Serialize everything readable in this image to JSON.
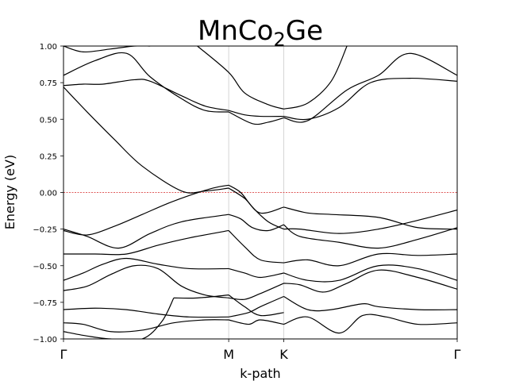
{
  "chart_data": {
    "type": "line",
    "title": "MnCo",
    "title_subscript": "2",
    "title_suffix": "Ge",
    "xlabel": "k-path",
    "ylabel": "Energy (eV)",
    "ylim": [
      -1.0,
      1.0
    ],
    "yticks": [
      -1.0,
      -0.75,
      -0.5,
      -0.25,
      0.0,
      0.25,
      0.5,
      0.75,
      1.0
    ],
    "ytick_labels": [
      "−1.00",
      "−0.75",
      "−0.50",
      "−0.25",
      "0.00",
      "0.25",
      "0.50",
      "0.75",
      "1.00"
    ],
    "kpoints": [
      {
        "label": "Γ",
        "x": 0.0
      },
      {
        "label": "M",
        "x": 0.4196
      },
      {
        "label": "K",
        "x": 0.5595
      },
      {
        "label": "Γ",
        "x": 1.0
      }
    ],
    "fermi_level": 0.0,
    "fermi_color": "#d62728",
    "line_color": "#000000",
    "grid_color": "#cccccc",
    "bands": [
      {
        "x": [
          0,
          0.06,
          0.13,
          0.2,
          0.3,
          0.36,
          0.4196
        ],
        "y": [
          0.72,
          0.55,
          0.36,
          0.18,
          0.01,
          0.01,
          0.03
        ]
      },
      {
        "x": [
          0.4196,
          0.46,
          0.5,
          0.5595
        ],
        "y": [
          0.03,
          -0.04,
          -0.14,
          -0.1
        ]
      },
      {
        "x": [
          0.5595,
          0.62,
          0.68,
          0.8,
          0.9,
          1.0
        ],
        "y": [
          -0.1,
          -0.14,
          -0.15,
          -0.17,
          -0.24,
          -0.25
        ]
      },
      {
        "x": [
          0,
          0.06,
          0.13,
          0.2,
          0.26,
          0.32,
          0.38,
          0.4196
        ],
        "y": [
          -0.26,
          -0.29,
          -0.23,
          -0.15,
          -0.08,
          -0.02,
          0.03,
          0.05
        ]
      },
      {
        "x": [
          0.4196,
          0.45,
          0.48,
          0.52,
          0.5595
        ],
        "y": [
          0.05,
          0.0,
          -0.1,
          -0.2,
          -0.25
        ]
      },
      {
        "x": [
          0.5595,
          0.6,
          0.7,
          0.8,
          0.9,
          1.0
        ],
        "y": [
          -0.25,
          -0.25,
          -0.28,
          -0.25,
          -0.19,
          -0.12
        ]
      },
      {
        "x": [
          0,
          0.06,
          0.14,
          0.22,
          0.3,
          0.4196
        ],
        "y": [
          -0.25,
          -0.3,
          -0.38,
          -0.28,
          -0.2,
          -0.15
        ]
      },
      {
        "x": [
          0.4196,
          0.45,
          0.48,
          0.52,
          0.5595
        ],
        "y": [
          -0.15,
          -0.18,
          -0.24,
          -0.26,
          -0.22
        ]
      },
      {
        "x": [
          0.5595,
          0.6,
          0.7,
          0.8,
          0.9,
          1.0
        ],
        "y": [
          -0.22,
          -0.3,
          -0.34,
          -0.38,
          -0.32,
          -0.24
        ]
      },
      {
        "x": [
          0,
          0.08,
          0.16,
          0.24,
          0.32,
          0.4196
        ],
        "y": [
          -0.42,
          -0.42,
          -0.42,
          -0.36,
          -0.31,
          -0.26
        ]
      },
      {
        "x": [
          0.4196,
          0.46,
          0.5,
          0.5595
        ],
        "y": [
          -0.26,
          -0.37,
          -0.46,
          -0.48
        ]
      },
      {
        "x": [
          0.5595,
          0.62,
          0.7,
          0.8,
          0.9,
          1.0
        ],
        "y": [
          -0.48,
          -0.46,
          -0.5,
          -0.42,
          -0.43,
          -0.42
        ]
      },
      {
        "x": [
          0,
          0.05,
          0.1,
          0.16,
          0.24,
          0.32,
          0.4196
        ],
        "y": [
          -0.6,
          -0.55,
          -0.49,
          -0.45,
          -0.49,
          -0.52,
          -0.52
        ]
      },
      {
        "x": [
          0.4196,
          0.46,
          0.5,
          0.5595
        ],
        "y": [
          -0.52,
          -0.55,
          -0.58,
          -0.55
        ]
      },
      {
        "x": [
          0.5595,
          0.62,
          0.7,
          0.8,
          0.9,
          1.0
        ],
        "y": [
          -0.55,
          -0.6,
          -0.6,
          -0.5,
          -0.52,
          -0.6
        ]
      },
      {
        "x": [
          0,
          0.06,
          0.12,
          0.18,
          0.24,
          0.3,
          0.36,
          0.4196
        ],
        "y": [
          -0.67,
          -0.64,
          -0.56,
          -0.5,
          -0.52,
          -0.64,
          -0.7,
          -0.72
        ]
      },
      {
        "x": [
          0.4196,
          0.46,
          0.5,
          0.5595
        ],
        "y": [
          -0.72,
          -0.73,
          -0.69,
          -0.62
        ]
      },
      {
        "x": [
          0.5595,
          0.6,
          0.66,
          0.72,
          0.8,
          0.9,
          1.0
        ],
        "y": [
          -0.62,
          -0.63,
          -0.68,
          -0.62,
          -0.53,
          -0.58,
          -0.66
        ]
      },
      {
        "x": [
          0,
          0.08,
          0.16,
          0.24,
          0.32,
          0.4196
        ],
        "y": [
          -0.8,
          -0.79,
          -0.8,
          -0.83,
          -0.85,
          -0.85
        ]
      },
      {
        "x": [
          0.4196,
          0.47,
          0.5,
          0.5595
        ],
        "y": [
          -0.85,
          -0.82,
          -0.78,
          -0.71
        ]
      },
      {
        "x": [
          0.5595,
          0.62,
          0.68,
          0.76,
          0.8,
          0.9,
          1.0
        ],
        "y": [
          -0.71,
          -0.8,
          -0.8,
          -0.76,
          -0.78,
          -0.8,
          -0.8
        ]
      },
      {
        "x": [
          0,
          0.05,
          0.12,
          0.2,
          0.28,
          0.36,
          0.4196
        ],
        "y": [
          -0.89,
          -0.9,
          -0.95,
          -0.94,
          -0.89,
          -0.87,
          -0.87
        ]
      },
      {
        "x": [
          0.4196,
          0.47,
          0.5,
          0.5595
        ],
        "y": [
          -0.87,
          -0.9,
          -0.87,
          -0.9
        ]
      },
      {
        "x": [
          0.5595,
          0.62,
          0.7,
          0.76,
          0.82,
          0.9,
          1.0
        ],
        "y": [
          -0.9,
          -0.85,
          -0.96,
          -0.84,
          -0.85,
          -0.9,
          -0.89
        ]
      },
      {
        "x": [
          0,
          0.06,
          0.12,
          0.2,
          0.25,
          0.28
        ],
        "y": [
          -0.95,
          -0.98,
          -1.0,
          -1.0,
          -0.88,
          -0.72
        ]
      },
      {
        "x": [
          0.28,
          0.34,
          0.4196
        ],
        "y": [
          -0.72,
          -0.72,
          -0.7
        ]
      },
      {
        "x": [
          0.4196,
          0.46,
          0.5,
          0.5595
        ],
        "y": [
          -0.7,
          -0.78,
          -0.84,
          -0.82
        ]
      },
      {
        "x": [
          0,
          0.08,
          0.16,
          0.22,
          0.3,
          0.36,
          0.4196
        ],
        "y": [
          0.8,
          0.9,
          0.95,
          0.79,
          0.64,
          0.56,
          0.55
        ]
      },
      {
        "x": [
          0.4196,
          0.48,
          0.52,
          0.5595
        ],
        "y": [
          0.55,
          0.47,
          0.48,
          0.51
        ]
      },
      {
        "x": [
          0.5595,
          0.62,
          0.72,
          0.8,
          0.88,
          1.0
        ],
        "y": [
          0.51,
          0.49,
          0.7,
          0.8,
          0.95,
          0.8
        ]
      },
      {
        "x": [
          0,
          0.05,
          0.1,
          0.18,
          0.22,
          0.3,
          0.36,
          0.4196
        ],
        "y": [
          0.73,
          0.74,
          0.74,
          0.77,
          0.76,
          0.66,
          0.59,
          0.56
        ]
      },
      {
        "x": [
          0.4196,
          0.46,
          0.5,
          0.5595
        ],
        "y": [
          0.56,
          0.53,
          0.52,
          0.52
        ]
      },
      {
        "x": [
          0.5595,
          0.62,
          0.7,
          0.78,
          0.88,
          1.0
        ],
        "y": [
          0.52,
          0.5,
          0.58,
          0.75,
          0.78,
          0.76
        ]
      },
      {
        "x": [
          0,
          0.05,
          0.12,
          0.18,
          0.22
        ],
        "y": [
          1.0,
          0.96,
          0.98,
          1.0,
          1.0
        ]
      },
      {
        "x": [
          0.34,
          0.4196,
          0.46,
          0.52,
          0.5595
        ],
        "y": [
          1.0,
          0.82,
          0.68,
          0.6,
          0.57
        ]
      },
      {
        "x": [
          0.5595,
          0.62,
          0.68,
          0.72
        ],
        "y": [
          0.57,
          0.61,
          0.76,
          1.0
        ]
      }
    ]
  }
}
